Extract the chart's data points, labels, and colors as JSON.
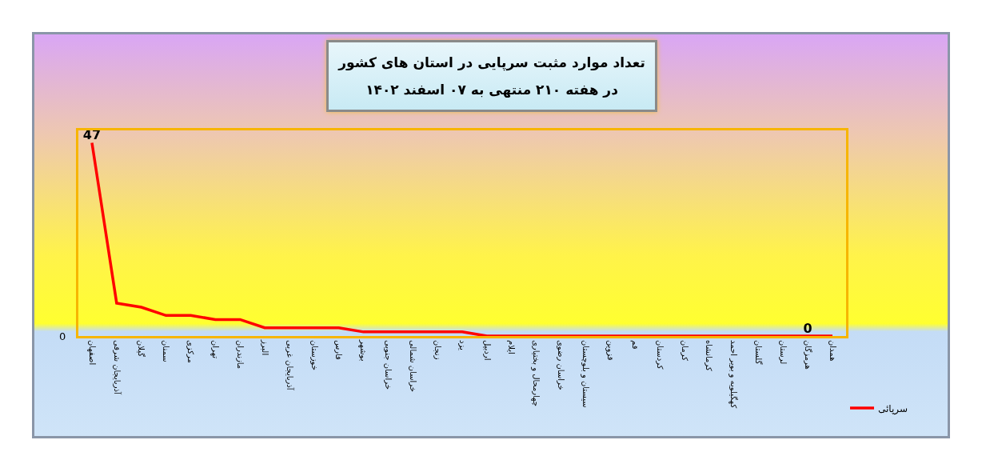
{
  "chart_data": {
    "type": "line",
    "title": "تعداد موارد مثبت سرپایی در استان های کشور\nدر هفته ۲۱۰ منتهی به ۰۷ اسفند ۱۴۰۲",
    "categories": [
      "اصفهان",
      "آذربایجان شرقی",
      "گیلان",
      "سمنان",
      "مرکزی",
      "تهران",
      "مازندران",
      "البرز",
      "آذربایجان غربی",
      "خوزستان",
      "فارس",
      "بوشهر",
      "خراسان جنوبی",
      "خراسان شمالی",
      "زنجان",
      "یزد",
      "اردبیل",
      "ایلام",
      "چهارمحال و بختیاری",
      "خراسان رضوی",
      "سیستان و بلوچستان",
      "قزوین",
      "قم",
      "کردستان",
      "کرمان",
      "کرمانشاه",
      "کهگیلویه و بویر احمد",
      "گلستان",
      "لرستان",
      "هرمزگان",
      "همدان"
    ],
    "series": [
      {
        "name": "سرپائی",
        "color": "#ff0000",
        "values": [
          47,
          8,
          7,
          5,
          5,
          4,
          4,
          2,
          2,
          2,
          2,
          1,
          1,
          1,
          1,
          1,
          0,
          0,
          0,
          0,
          0,
          0,
          0,
          0,
          0,
          0,
          0,
          0,
          0,
          0,
          0
        ],
        "value_labels": [
          "47",
          null,
          null,
          null,
          null,
          null,
          null,
          null,
          null,
          null,
          null,
          null,
          null,
          null,
          null,
          null,
          null,
          null,
          null,
          null,
          null,
          null,
          null,
          null,
          null,
          null,
          null,
          null,
          null,
          "0",
          null
        ]
      }
    ],
    "ylim": [
      0,
      50
    ],
    "annotations": [
      "0"
    ],
    "grid": false,
    "legend": "bottom right",
    "marker": "none",
    "line_style": "solid"
  }
}
